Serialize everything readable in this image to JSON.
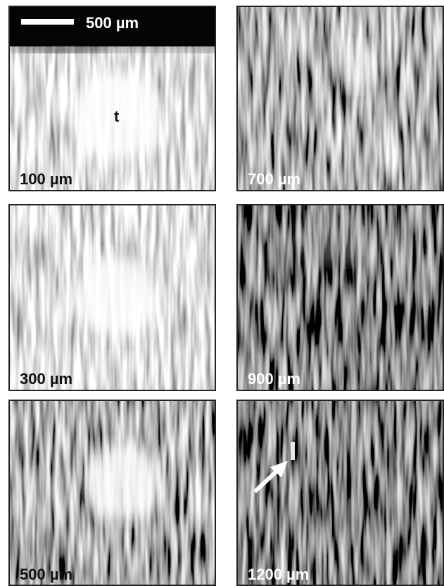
{
  "scale_bar": {
    "label": "500 µm"
  },
  "marker": "t",
  "panels": [
    {
      "label": "100 µm"
    },
    {
      "label": "700 µm"
    },
    {
      "label": "300 µm"
    },
    {
      "label": "900 µm"
    },
    {
      "label": "500 µm"
    },
    {
      "label": "1200 µm"
    }
  ]
}
